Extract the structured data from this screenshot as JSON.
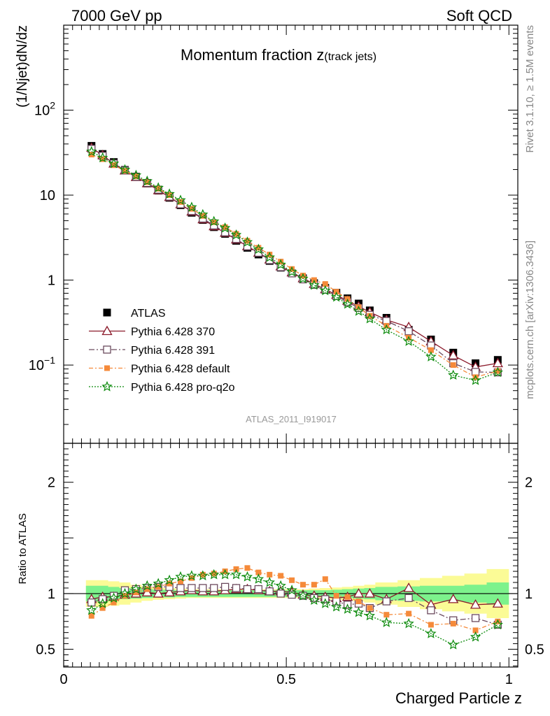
{
  "header": {
    "left": "7000 GeV pp",
    "right": "Soft QCD"
  },
  "title": {
    "main": "Momentum fraction z",
    "sub": "(track jets)"
  },
  "side_labels": {
    "top": "Rivet 3.1.10, ≥ 1.5M events",
    "bottom": "mcplots.cern.ch [arXiv:1306.3436]"
  },
  "analysis_tag": "ATLAS_2011_I919017",
  "chart_data": [
    {
      "type": "line",
      "scale": "log",
      "ylabel": "(1/Njet)dN/dz",
      "ylim": [
        0.012,
        1000
      ],
      "xlim": [
        0,
        1.02
      ],
      "y_ticks": [
        {
          "label_base": "10",
          "label_exp": "2",
          "value": 100
        },
        {
          "label_base": "10",
          "label_exp": "",
          "value": 10
        },
        {
          "label_base": "1",
          "label_exp": "",
          "value": 1
        },
        {
          "label_base": "10",
          "label_exp": "−1",
          "value": 0.1
        }
      ],
      "legend_position": "middle-left",
      "x": [
        0.0625,
        0.0875,
        0.1125,
        0.1375,
        0.1625,
        0.1875,
        0.2125,
        0.2375,
        0.2625,
        0.2875,
        0.3125,
        0.3375,
        0.3625,
        0.3875,
        0.4125,
        0.4375,
        0.4625,
        0.4875,
        0.5125,
        0.5375,
        0.5625,
        0.5875,
        0.6125,
        0.6375,
        0.6625,
        0.6875,
        0.725,
        0.775,
        0.825,
        0.875,
        0.925,
        0.975
      ],
      "series": [
        {
          "name": "ATLAS",
          "color": "#000000",
          "marker": "square",
          "values": [
            38,
            30.5,
            24.5,
            19.8,
            16.5,
            13.7,
            11.3,
            9.3,
            7.6,
            6.2,
            5.1,
            4.2,
            3.5,
            2.9,
            2.4,
            2.0,
            1.68,
            1.4,
            1.2,
            1.05,
            0.92,
            0.81,
            0.71,
            0.61,
            0.53,
            0.44,
            0.36,
            0.26,
            0.2,
            0.14,
            0.105,
            0.115
          ]
        },
        {
          "name": "Pythia 6.428 370",
          "color": "#8b1a2b",
          "marker": "triangle",
          "values": [
            36,
            29.5,
            23.5,
            19.5,
            16.3,
            13.8,
            11.4,
            9.5,
            7.8,
            6.4,
            5.2,
            4.3,
            3.6,
            3.0,
            2.5,
            2.1,
            1.75,
            1.45,
            1.23,
            1.05,
            0.9,
            0.78,
            0.67,
            0.57,
            0.49,
            0.42,
            0.34,
            0.28,
            0.19,
            0.13,
            0.095,
            0.105
          ]
        },
        {
          "name": "Pythia 6.428 391",
          "color": "#6b4a5e",
          "marker": "open-square",
          "values": [
            35,
            29,
            23.5,
            19.5,
            16.4,
            13.9,
            11.6,
            9.6,
            7.8,
            6.5,
            5.3,
            4.4,
            3.65,
            3.05,
            2.5,
            2.1,
            1.72,
            1.42,
            1.2,
            1.02,
            0.88,
            0.77,
            0.65,
            0.55,
            0.47,
            0.39,
            0.33,
            0.25,
            0.17,
            0.105,
            0.083,
            0.082
          ]
        },
        {
          "name": "Pythia 6.428 default",
          "color": "#f58a3a",
          "marker": "filled-square",
          "values": [
            30,
            26.5,
            22.5,
            19.3,
            16.6,
            14.2,
            11.9,
            10.0,
            8.3,
            6.9,
            5.7,
            4.8,
            4.2,
            3.5,
            2.9,
            2.4,
            2.0,
            1.65,
            1.35,
            1.13,
            1.0,
            0.9,
            0.73,
            0.6,
            0.48,
            0.38,
            0.29,
            0.21,
            0.15,
            0.1,
            0.072,
            0.085
          ]
        },
        {
          "name": "Pythia 6.428 pro-q2o",
          "color": "#0a8a0a",
          "marker": "star",
          "values": [
            32.5,
            27.5,
            23.5,
            19.9,
            17.1,
            14.6,
            12.2,
            10.3,
            8.7,
            7.2,
            5.9,
            4.9,
            4.1,
            3.4,
            2.8,
            2.3,
            1.85,
            1.52,
            1.25,
            1.04,
            0.87,
            0.75,
            0.63,
            0.52,
            0.43,
            0.35,
            0.26,
            0.19,
            0.125,
            0.076,
            0.066,
            0.082
          ]
        }
      ]
    },
    {
      "type": "line",
      "ylabel": "Ratio to ATLAS",
      "xlabel": "Charged Particle z",
      "ylim": [
        0.34,
        2.35
      ],
      "xlim": [
        0,
        1.02
      ],
      "y_ticks": [
        {
          "label": "2",
          "value": 2
        },
        {
          "label": "1",
          "value": 1
        },
        {
          "label": "0.5",
          "value": 0.5
        }
      ],
      "x_ticks": [
        {
          "label": "0",
          "value": 0
        },
        {
          "label": "0.5",
          "value": 0.5
        },
        {
          "label": "1",
          "value": 1
        }
      ],
      "band_inner_color": "#7df28c",
      "band_outer_color": "#fbfb96",
      "band_edges": [
        0.05,
        0.075,
        0.1,
        0.125,
        0.15,
        0.175,
        0.2,
        0.225,
        0.25,
        0.275,
        0.3,
        0.325,
        0.35,
        0.375,
        0.4,
        0.425,
        0.45,
        0.475,
        0.5,
        0.525,
        0.55,
        0.575,
        0.6,
        0.625,
        0.65,
        0.675,
        0.7,
        0.75,
        0.8,
        0.85,
        0.9,
        0.95,
        1.0
      ],
      "band_inner_halfwidth": [
        0.07,
        0.07,
        0.06,
        0.05,
        0.045,
        0.04,
        0.035,
        0.035,
        0.03,
        0.03,
        0.03,
        0.03,
        0.03,
        0.03,
        0.03,
        0.03,
        0.03,
        0.03,
        0.03,
        0.03,
        0.03,
        0.03,
        0.035,
        0.04,
        0.045,
        0.05,
        0.06,
        0.065,
        0.07,
        0.07,
        0.08,
        0.1
      ],
      "band_outer_halfwidth": [
        0.12,
        0.12,
        0.11,
        0.1,
        0.08,
        0.065,
        0.055,
        0.05,
        0.045,
        0.04,
        0.04,
        0.04,
        0.04,
        0.04,
        0.04,
        0.04,
        0.04,
        0.04,
        0.04,
        0.04,
        0.045,
        0.05,
        0.055,
        0.06,
        0.07,
        0.08,
        0.1,
        0.12,
        0.14,
        0.16,
        0.18,
        0.22
      ],
      "x": [
        0.0625,
        0.0875,
        0.1125,
        0.1375,
        0.1625,
        0.1875,
        0.2125,
        0.2375,
        0.2625,
        0.2875,
        0.3125,
        0.3375,
        0.3625,
        0.3875,
        0.4125,
        0.4375,
        0.4625,
        0.4875,
        0.5125,
        0.5375,
        0.5625,
        0.5875,
        0.6125,
        0.6375,
        0.6625,
        0.6875,
        0.725,
        0.775,
        0.825,
        0.875,
        0.925,
        0.975
      ],
      "series": [
        {
          "name": "Pythia 6.428 370",
          "color": "#8b1a2b",
          "marker": "triangle",
          "values": [
            0.95,
            0.97,
            0.97,
            0.99,
            1.0,
            1.01,
            1.0,
            1.01,
            1.02,
            1.03,
            1.02,
            1.02,
            1.03,
            1.04,
            1.04,
            1.03,
            1.02,
            1.02,
            1.01,
            0.99,
            0.98,
            0.97,
            0.96,
            0.97,
            1.0,
            1.0,
            0.95,
            1.05,
            0.9,
            0.95,
            0.9,
            0.91
          ]
        },
        {
          "name": "Pythia 6.428 391",
          "color": "#6b4a5e",
          "marker": "open-square",
          "values": [
            0.92,
            0.95,
            0.98,
            1.03,
            1.04,
            1.05,
            1.06,
            1.06,
            1.05,
            1.05,
            1.05,
            1.05,
            1.06,
            1.05,
            1.04,
            1.04,
            1.02,
            1.0,
            0.99,
            0.98,
            0.96,
            0.95,
            0.93,
            0.9,
            0.91,
            0.87,
            0.93,
            0.96,
            0.85,
            0.76,
            0.78,
            0.72
          ]
        },
        {
          "name": "Pythia 6.428 default",
          "color": "#f58a3a",
          "marker": "filled-square",
          "values": [
            0.8,
            0.87,
            0.92,
            0.98,
            1.01,
            1.04,
            1.06,
            1.09,
            1.11,
            1.14,
            1.17,
            1.18,
            1.2,
            1.22,
            1.23,
            1.19,
            1.17,
            1.16,
            1.12,
            1.08,
            1.08,
            1.13,
            0.98,
            0.97,
            0.93,
            0.87,
            0.81,
            0.82,
            0.72,
            0.73,
            0.67,
            0.75
          ]
        },
        {
          "name": "Pythia 6.428 pro-q2o",
          "color": "#0a8a0a",
          "marker": "star",
          "values": [
            0.85,
            0.91,
            0.96,
            1.0,
            1.04,
            1.07,
            1.09,
            1.12,
            1.15,
            1.16,
            1.16,
            1.17,
            1.17,
            1.17,
            1.15,
            1.13,
            1.1,
            1.07,
            1.03,
            0.98,
            0.94,
            0.91,
            0.88,
            0.86,
            0.83,
            0.8,
            0.74,
            0.73,
            0.64,
            0.54,
            0.61,
            0.72
          ]
        }
      ]
    }
  ]
}
